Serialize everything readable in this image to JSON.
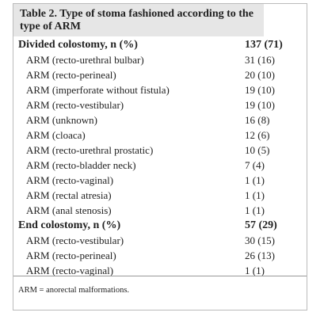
{
  "table": {
    "title": "Table 2. Type of stoma fashioned according to the type of ARM",
    "groups": [
      {
        "label": "Divided colostomy, n (%)",
        "value": "137 (71)",
        "rows": [
          {
            "label": "ARM (recto-urethral bulbar)",
            "value": "31 (16)"
          },
          {
            "label": "ARM (recto-perineal)",
            "value": "20 (10)"
          },
          {
            "label": "ARM (imperforate without fistula)",
            "value": "19 (10)"
          },
          {
            "label": "ARM (recto-vestibular)",
            "value": "19 (10)"
          },
          {
            "label": "ARM (unknown)",
            "value": "16 (8)"
          },
          {
            "label": "ARM (cloaca)",
            "value": "12 (6)"
          },
          {
            "label": "ARM (recto-urethral prostatic)",
            "value": "10 (5)"
          },
          {
            "label": "ARM (recto-bladder neck)",
            "value": "7 (4)"
          },
          {
            "label": "ARM (recto-vaginal)",
            "value": "1 (1)"
          },
          {
            "label": "ARM (rectal atresia)",
            "value": "1 (1)"
          },
          {
            "label": "ARM (anal stenosis)",
            "value": "1 (1)"
          }
        ]
      },
      {
        "label": "End colostomy, n (%)",
        "value": "57 (29)",
        "rows": [
          {
            "label": "ARM (recto-vestibular)",
            "value": "30 (15)"
          },
          {
            "label": "ARM (recto-perineal)",
            "value": "26 (13)"
          },
          {
            "label": "ARM (recto-vaginal)",
            "value": "1 (1)"
          }
        ]
      }
    ],
    "footnote": "ARM = anorectal malformations."
  }
}
